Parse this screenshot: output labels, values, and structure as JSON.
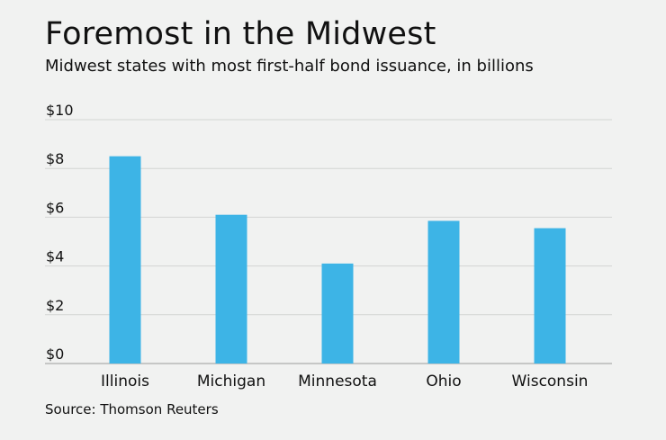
{
  "title": "Foremost in the Midwest",
  "subtitle": "Midwest states with most first-half bond issuance, in billions",
  "source": "Source: Thomson Reuters",
  "colors": {
    "bar": "#3db4e6",
    "grid": "#d3d5d3",
    "axis": "#9a9c9a"
  },
  "chart_data": {
    "type": "bar",
    "title": "Foremost in the Midwest",
    "subtitle": "Midwest states with most first-half bond issuance, in billions",
    "categories": [
      "Illinois",
      "Michigan",
      "Minnesota",
      "Ohio",
      "Wisconsin"
    ],
    "values": [
      8.5,
      6.1,
      4.1,
      5.85,
      5.55
    ],
    "ylim": [
      0,
      10
    ],
    "yticks": [
      0,
      2,
      4,
      6,
      8,
      10
    ],
    "ytick_labels": [
      "$0",
      "$2",
      "$4",
      "$6",
      "$8",
      "$10"
    ],
    "xlabel": "",
    "ylabel": "",
    "grid": true,
    "legend": "none"
  }
}
